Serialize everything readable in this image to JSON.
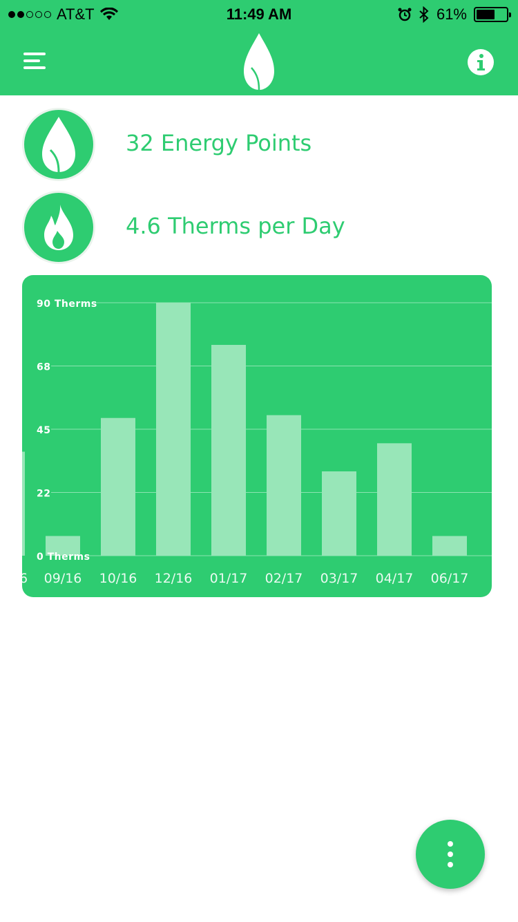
{
  "status_bar": {
    "carrier": "AT&T",
    "time": "11:49 AM",
    "battery": "61%",
    "battery_level": 0.61,
    "signal_bars": 2
  },
  "nav": {
    "menu_icon": "hamburger-menu-icon",
    "logo_icon": "leaf-logo-icon",
    "info_icon": "info-icon"
  },
  "stats": {
    "energy_points": "32 Energy Points",
    "therms_per_day": "4.6 Therms per Day"
  },
  "colors": {
    "brand_green": "#2ecc71",
    "bar_fill": "#98e6b8"
  },
  "chart_data": {
    "type": "bar",
    "categories": [
      "09/16",
      "10/16",
      "12/16",
      "01/17",
      "02/17",
      "03/17",
      "04/17",
      "06/17"
    ],
    "values": [
      7,
      49,
      90,
      75,
      50,
      30,
      40,
      7
    ],
    "partial_leading_value": 37,
    "partial_leading_label": "6",
    "ytick_labels": [
      "90 Therms",
      "68",
      "45",
      "22",
      "0 Therms"
    ],
    "ytick_values": [
      90,
      67.5,
      45,
      22.5,
      0
    ],
    "ylim": [
      0,
      90
    ],
    "grid": true
  }
}
